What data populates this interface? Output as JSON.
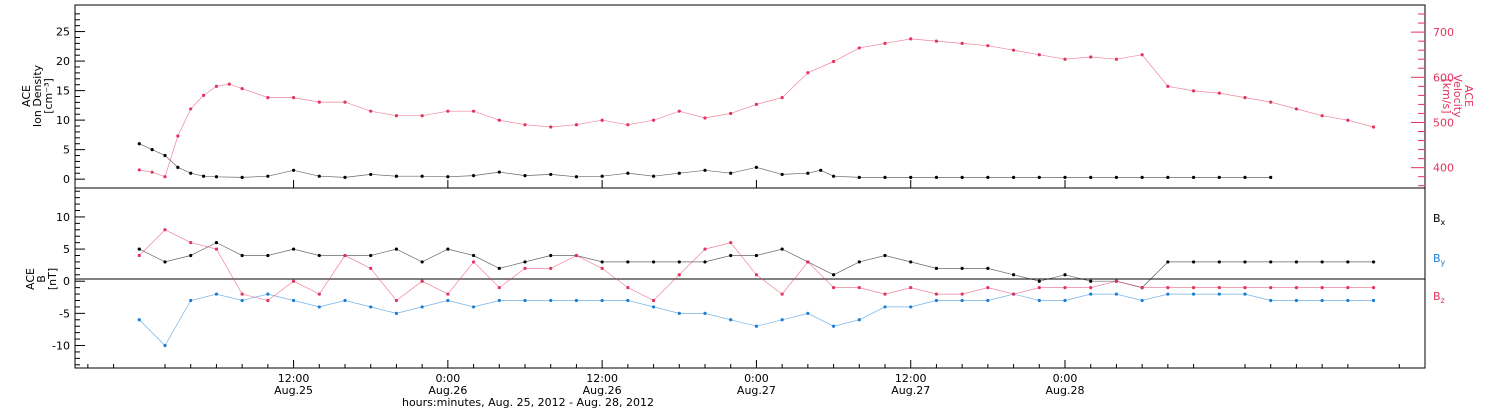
{
  "chart_data": [
    {
      "panel": "top",
      "type": "scatter",
      "left_axis": {
        "label_lines": [
          "ACE",
          "Ion Density",
          "[cm⁻³]"
        ],
        "ylim": [
          -1.5,
          29.5
        ],
        "ticks": [
          0,
          5,
          10,
          15,
          20,
          25
        ]
      },
      "right_axis": {
        "label_lines": [
          "ACE",
          "Velocity",
          "[km/s]"
        ],
        "ylim": [
          355,
          760
        ],
        "ticks": [
          400,
          500,
          600,
          700
        ]
      },
      "series": [
        {
          "name": "",
          "axis": "left",
          "color": "#000000",
          "points": [
            [
              0,
              6
            ],
            [
              1,
              5
            ],
            [
              2,
              4
            ],
            [
              3,
              2
            ],
            [
              4,
              1
            ],
            [
              5,
              0.5
            ],
            [
              6,
              0.4
            ],
            [
              8,
              0.3
            ],
            [
              10,
              0.5
            ],
            [
              12,
              1.5
            ],
            [
              14,
              0.5
            ],
            [
              16,
              0.3
            ],
            [
              18,
              0.8
            ],
            [
              20,
              0.5
            ],
            [
              22,
              0.5
            ],
            [
              24,
              0.4
            ],
            [
              26,
              0.6
            ],
            [
              28,
              1.2
            ],
            [
              30,
              0.6
            ],
            [
              32,
              0.8
            ],
            [
              34,
              0.4
            ],
            [
              36,
              0.5
            ],
            [
              38,
              1
            ],
            [
              40,
              0.5
            ],
            [
              42,
              1
            ],
            [
              44,
              1.5
            ],
            [
              46,
              1
            ],
            [
              48,
              2
            ],
            [
              50,
              0.8
            ],
            [
              52,
              1
            ],
            [
              53,
              1.5
            ],
            [
              54,
              0.5
            ],
            [
              56,
              0.3
            ],
            [
              58,
              0.3
            ],
            [
              60,
              0.3
            ],
            [
              62,
              0.3
            ],
            [
              64,
              0.3
            ],
            [
              66,
              0.3
            ],
            [
              68,
              0.3
            ],
            [
              70,
              0.3
            ],
            [
              72,
              0.3
            ],
            [
              74,
              0.3
            ],
            [
              76,
              0.3
            ],
            [
              78,
              0.3
            ],
            [
              80,
              0.3
            ],
            [
              82,
              0.3
            ],
            [
              84,
              0.3
            ],
            [
              86,
              0.3
            ],
            [
              88,
              0.3
            ]
          ]
        },
        {
          "name": "",
          "axis": "right",
          "color": "#e4335e",
          "points": [
            [
              0,
              395
            ],
            [
              1,
              390
            ],
            [
              2,
              380
            ],
            [
              3,
              470
            ],
            [
              4,
              530
            ],
            [
              5,
              560
            ],
            [
              6,
              580
            ],
            [
              7,
              585
            ],
            [
              8,
              575
            ],
            [
              10,
              555
            ],
            [
              12,
              555
            ],
            [
              14,
              545
            ],
            [
              16,
              545
            ],
            [
              18,
              525
            ],
            [
              20,
              515
            ],
            [
              22,
              515
            ],
            [
              24,
              525
            ],
            [
              26,
              525
            ],
            [
              28,
              505
            ],
            [
              30,
              495
            ],
            [
              32,
              490
            ],
            [
              34,
              495
            ],
            [
              36,
              505
            ],
            [
              38,
              495
            ],
            [
              40,
              505
            ],
            [
              42,
              525
            ],
            [
              44,
              510
            ],
            [
              46,
              520
            ],
            [
              48,
              540
            ],
            [
              50,
              555
            ],
            [
              52,
              610
            ],
            [
              54,
              635
            ],
            [
              56,
              665
            ],
            [
              58,
              675
            ],
            [
              60,
              685
            ],
            [
              62,
              680
            ],
            [
              64,
              675
            ],
            [
              66,
              670
            ],
            [
              68,
              660
            ],
            [
              70,
              650
            ],
            [
              72,
              640
            ],
            [
              74,
              645
            ],
            [
              76,
              640
            ],
            [
              78,
              650
            ],
            [
              80,
              580
            ],
            [
              82,
              570
            ],
            [
              84,
              565
            ],
            [
              86,
              555
            ],
            [
              88,
              545
            ],
            [
              90,
              530
            ],
            [
              92,
              515
            ],
            [
              94,
              505
            ],
            [
              96,
              490
            ]
          ]
        }
      ]
    },
    {
      "panel": "bottom",
      "type": "scatter",
      "left_axis": {
        "label_lines": [
          "ACE",
          "B",
          "[nT]"
        ],
        "ylim": [
          -13.5,
          14.5
        ],
        "ticks": [
          -10,
          -5,
          0,
          5,
          10
        ]
      },
      "series": [
        {
          "name": "Bx",
          "color": "#000000",
          "points": [
            [
              0,
              5
            ],
            [
              2,
              3
            ],
            [
              4,
              4
            ],
            [
              6,
              6
            ],
            [
              8,
              4
            ],
            [
              10,
              4
            ],
            [
              12,
              5
            ],
            [
              14,
              4
            ],
            [
              16,
              4
            ],
            [
              18,
              4
            ],
            [
              20,
              5
            ],
            [
              22,
              3
            ],
            [
              24,
              5
            ],
            [
              26,
              4
            ],
            [
              28,
              2
            ],
            [
              30,
              3
            ],
            [
              32,
              4
            ],
            [
              34,
              4
            ],
            [
              36,
              3
            ],
            [
              38,
              3
            ],
            [
              40,
              3
            ],
            [
              42,
              3
            ],
            [
              44,
              3
            ],
            [
              46,
              4
            ],
            [
              48,
              4
            ],
            [
              50,
              5
            ],
            [
              52,
              3
            ],
            [
              54,
              1
            ],
            [
              56,
              3
            ],
            [
              58,
              4
            ],
            [
              60,
              3
            ],
            [
              62,
              2
            ],
            [
              64,
              2
            ],
            [
              66,
              2
            ],
            [
              68,
              1
            ],
            [
              70,
              0
            ],
            [
              72,
              1
            ],
            [
              74,
              0
            ],
            [
              76,
              0
            ],
            [
              78,
              -1
            ],
            [
              80,
              3
            ],
            [
              82,
              3
            ],
            [
              84,
              3
            ],
            [
              86,
              3
            ],
            [
              88,
              3
            ],
            [
              90,
              3
            ],
            [
              92,
              3
            ],
            [
              94,
              3
            ],
            [
              96,
              3
            ]
          ]
        },
        {
          "name": "By",
          "color": "#1a7fd6",
          "points": [
            [
              0,
              -6
            ],
            [
              2,
              -10
            ],
            [
              4,
              -3
            ],
            [
              6,
              -2
            ],
            [
              8,
              -3
            ],
            [
              10,
              -2
            ],
            [
              12,
              -3
            ],
            [
              14,
              -4
            ],
            [
              16,
              -3
            ],
            [
              18,
              -4
            ],
            [
              20,
              -5
            ],
            [
              22,
              -4
            ],
            [
              24,
              -3
            ],
            [
              26,
              -4
            ],
            [
              28,
              -3
            ],
            [
              30,
              -3
            ],
            [
              32,
              -3
            ],
            [
              34,
              -3
            ],
            [
              36,
              -3
            ],
            [
              38,
              -3
            ],
            [
              40,
              -4
            ],
            [
              42,
              -5
            ],
            [
              44,
              -5
            ],
            [
              46,
              -6
            ],
            [
              48,
              -7
            ],
            [
              50,
              -6
            ],
            [
              52,
              -5
            ],
            [
              54,
              -7
            ],
            [
              56,
              -6
            ],
            [
              58,
              -4
            ],
            [
              60,
              -4
            ],
            [
              62,
              -3
            ],
            [
              64,
              -3
            ],
            [
              66,
              -3
            ],
            [
              68,
              -2
            ],
            [
              70,
              -3
            ],
            [
              72,
              -3
            ],
            [
              74,
              -2
            ],
            [
              76,
              -2
            ],
            [
              78,
              -3
            ],
            [
              80,
              -2
            ],
            [
              82,
              -2
            ],
            [
              84,
              -2
            ],
            [
              86,
              -2
            ],
            [
              88,
              -3
            ],
            [
              90,
              -3
            ],
            [
              92,
              -3
            ],
            [
              94,
              -3
            ],
            [
              96,
              -3
            ]
          ]
        },
        {
          "name": "Bz",
          "color": "#e4335e",
          "points": [
            [
              0,
              4
            ],
            [
              2,
              8
            ],
            [
              4,
              6
            ],
            [
              6,
              5
            ],
            [
              8,
              -2
            ],
            [
              10,
              -3
            ],
            [
              12,
              0
            ],
            [
              14,
              -2
            ],
            [
              16,
              4
            ],
            [
              18,
              2
            ],
            [
              20,
              -3
            ],
            [
              22,
              0
            ],
            [
              24,
              -2
            ],
            [
              26,
              3
            ],
            [
              28,
              -1
            ],
            [
              30,
              2
            ],
            [
              32,
              2
            ],
            [
              34,
              4
            ],
            [
              36,
              2
            ],
            [
              38,
              -1
            ],
            [
              40,
              -3
            ],
            [
              42,
              1
            ],
            [
              44,
              5
            ],
            [
              46,
              6
            ],
            [
              48,
              1
            ],
            [
              50,
              -2
            ],
            [
              52,
              3
            ],
            [
              54,
              -1
            ],
            [
              56,
              -1
            ],
            [
              58,
              -2
            ],
            [
              60,
              -1
            ],
            [
              62,
              -2
            ],
            [
              64,
              -2
            ],
            [
              66,
              -1
            ],
            [
              68,
              -2
            ],
            [
              70,
              -1
            ],
            [
              72,
              -1
            ],
            [
              74,
              -1
            ],
            [
              76,
              0
            ],
            [
              78,
              -1
            ],
            [
              80,
              -1
            ],
            [
              82,
              -1
            ],
            [
              84,
              -1
            ],
            [
              86,
              -1
            ],
            [
              88,
              -1
            ],
            [
              90,
              -1
            ],
            [
              92,
              -1
            ],
            [
              94,
              -1
            ],
            [
              96,
              -1
            ]
          ]
        }
      ],
      "legend": {
        "placement": "right",
        "entries": [
          {
            "text": "Bx",
            "color": "#000000"
          },
          {
            "text": "By",
            "color": "#1a7fd6"
          },
          {
            "text": "Bz",
            "color": "#e4335e"
          }
        ]
      }
    }
  ],
  "x_axis": {
    "range_hours": [
      -5,
      100
    ],
    "ticks": [
      {
        "h": 12,
        "line1": "12:00",
        "line2": "Aug.25"
      },
      {
        "h": 24,
        "line1": "0:00",
        "line2": "Aug.26"
      },
      {
        "h": 36,
        "line1": "12:00",
        "line2": "Aug.26"
      },
      {
        "h": 48,
        "line1": "0:00",
        "line2": "Aug.27"
      },
      {
        "h": 60,
        "line1": "12:00",
        "line2": "Aug.27"
      },
      {
        "h": 72,
        "line1": "0:00",
        "line2": "Aug.28"
      }
    ],
    "title": "hours:minutes, Aug. 25, 2012 - Aug. 28, 2012"
  }
}
